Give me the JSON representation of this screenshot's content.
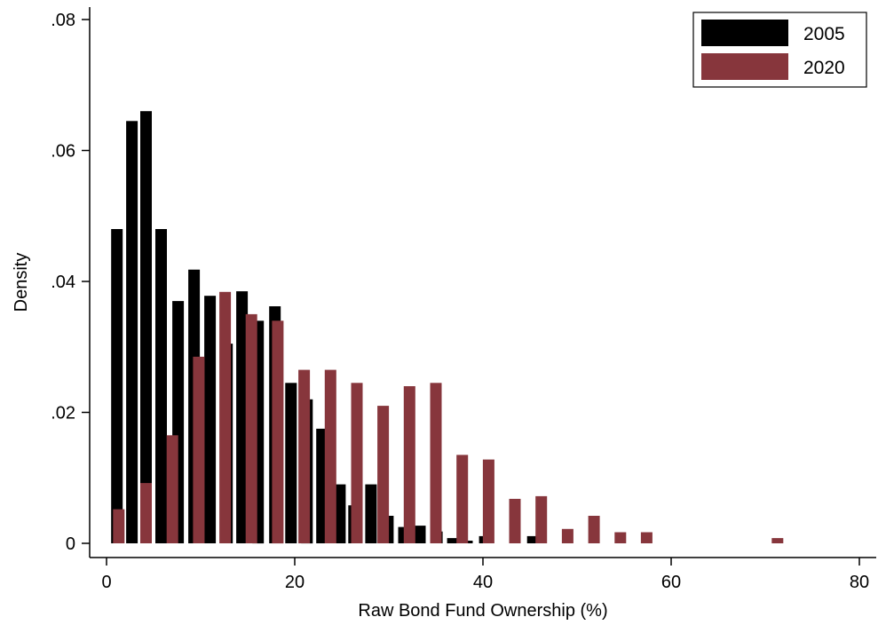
{
  "chart_data": {
    "type": "bar",
    "title": "",
    "xlabel": "Raw Bond Fund Ownership (%)",
    "ylabel": "Density",
    "xlim": [
      0,
      80
    ],
    "ylim": [
      0,
      0.08
    ],
    "xticks": [
      0,
      20,
      40,
      60,
      80
    ],
    "xtick_labels": [
      "0",
      "20",
      "40",
      "60",
      "80"
    ],
    "yticks": [
      0,
      0.02,
      0.04,
      0.06,
      0.08
    ],
    "ytick_labels": [
      "0",
      ".02",
      ".04",
      ".06",
      ".08"
    ],
    "bin_width": 2.8,
    "grid": false,
    "legend_position": "top-right",
    "series": [
      {
        "name": "2005",
        "color": "#000000",
        "bins": [
          {
            "x": 1.1,
            "y": 0.048
          },
          {
            "x": 2.7,
            "y": 0.0645
          },
          {
            "x": 4.2,
            "y": 0.066
          },
          {
            "x": 5.8,
            "y": 0.048
          },
          {
            "x": 7.6,
            "y": 0.037
          },
          {
            "x": 9.3,
            "y": 0.0418
          },
          {
            "x": 11.0,
            "y": 0.0378
          },
          {
            "x": 12.8,
            "y": 0.0305
          },
          {
            "x": 14.4,
            "y": 0.0385
          },
          {
            "x": 16.1,
            "y": 0.034
          },
          {
            "x": 17.9,
            "y": 0.0362
          },
          {
            "x": 19.6,
            "y": 0.0245
          },
          {
            "x": 21.3,
            "y": 0.022
          },
          {
            "x": 22.9,
            "y": 0.0175
          },
          {
            "x": 24.8,
            "y": 0.009
          },
          {
            "x": 26.3,
            "y": 0.0058
          },
          {
            "x": 28.1,
            "y": 0.009
          },
          {
            "x": 29.9,
            "y": 0.0042
          },
          {
            "x": 31.6,
            "y": 0.0025
          },
          {
            "x": 33.3,
            "y": 0.0027
          },
          {
            "x": 35.1,
            "y": 0.0018
          },
          {
            "x": 36.8,
            "y": 0.0008
          },
          {
            "x": 38.3,
            "y": 0.0004
          },
          {
            "x": 40.2,
            "y": 0.0011
          },
          {
            "x": 45.3,
            "y": 0.0011
          }
        ]
      },
      {
        "name": "2020",
        "color": "#87363c",
        "bins": [
          {
            "x": 1.3,
            "y": 0.0052
          },
          {
            "x": 4.2,
            "y": 0.0092
          },
          {
            "x": 7.0,
            "y": 0.0165
          },
          {
            "x": 9.8,
            "y": 0.0285
          },
          {
            "x": 12.6,
            "y": 0.0384
          },
          {
            "x": 15.4,
            "y": 0.035
          },
          {
            "x": 18.2,
            "y": 0.034
          },
          {
            "x": 21.0,
            "y": 0.0265
          },
          {
            "x": 23.8,
            "y": 0.0265
          },
          {
            "x": 26.6,
            "y": 0.0245
          },
          {
            "x": 29.4,
            "y": 0.021
          },
          {
            "x": 32.2,
            "y": 0.024
          },
          {
            "x": 35.0,
            "y": 0.0245
          },
          {
            "x": 37.8,
            "y": 0.0135
          },
          {
            "x": 40.6,
            "y": 0.0128
          },
          {
            "x": 43.4,
            "y": 0.0068
          },
          {
            "x": 46.2,
            "y": 0.0072
          },
          {
            "x": 49.0,
            "y": 0.0022
          },
          {
            "x": 51.8,
            "y": 0.0042
          },
          {
            "x": 54.6,
            "y": 0.0017
          },
          {
            "x": 57.4,
            "y": 0.0017
          },
          {
            "x": 71.3,
            "y": 0.0008
          }
        ]
      }
    ]
  }
}
